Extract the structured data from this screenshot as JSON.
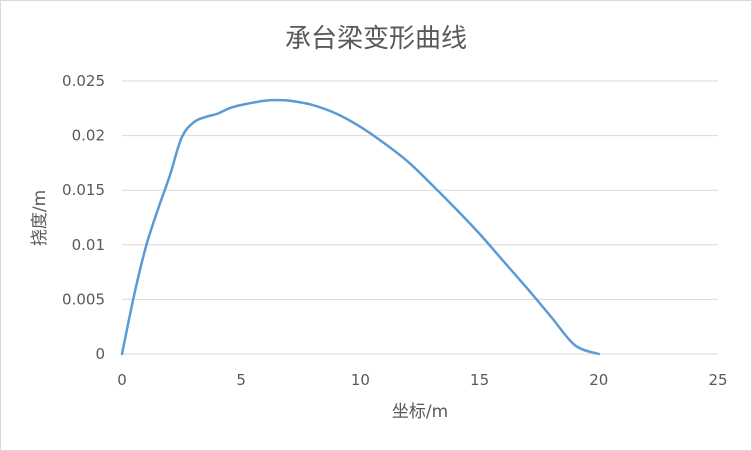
{
  "chart_data": {
    "type": "line",
    "title": "承台梁变形曲线",
    "xlabel": "坐标/m",
    "ylabel": "挠度/m",
    "xlim": [
      0,
      25
    ],
    "ylim": [
      0,
      0.025
    ],
    "x_ticks": [
      "0",
      "5",
      "10",
      "15",
      "20",
      "25"
    ],
    "y_ticks": [
      "0",
      "0.005",
      "0.01",
      "0.015",
      "0.02",
      "0.025"
    ],
    "grid": "horizontal",
    "legend": "none",
    "series": [
      {
        "color": "#5b9bd5",
        "points": [
          [
            0,
            0
          ],
          [
            0.5,
            0.0053
          ],
          [
            1,
            0.0098
          ],
          [
            1.5,
            0.0132
          ],
          [
            2,
            0.0163
          ],
          [
            2.5,
            0.0198
          ],
          [
            3,
            0.0212
          ],
          [
            3.5,
            0.0217
          ],
          [
            4,
            0.022
          ],
          [
            4.5,
            0.0225
          ],
          [
            5,
            0.0228
          ],
          [
            6,
            0.0232
          ],
          [
            6.5,
            0.02325
          ],
          [
            7,
            0.0232
          ],
          [
            8,
            0.0228
          ],
          [
            9,
            0.022
          ],
          [
            10,
            0.0208
          ],
          [
            11,
            0.0193
          ],
          [
            12,
            0.0176
          ],
          [
            13,
            0.0155
          ],
          [
            14,
            0.0133
          ],
          [
            15,
            0.011
          ],
          [
            16,
            0.0085
          ],
          [
            17,
            0.006
          ],
          [
            18,
            0.0034
          ],
          [
            19,
            0.0008
          ],
          [
            20,
            0
          ]
        ]
      }
    ]
  }
}
